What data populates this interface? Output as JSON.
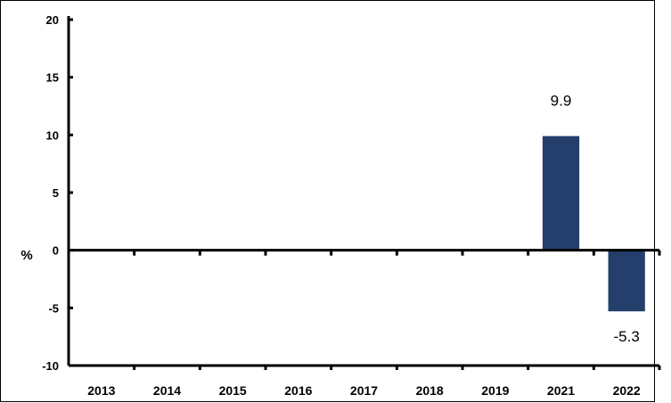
{
  "chart_data": {
    "type": "bar",
    "title": "",
    "xlabel": "",
    "ylabel": "%",
    "ylim": [
      -10,
      20
    ],
    "yticks": [
      20,
      15,
      10,
      5,
      0,
      -5,
      -10
    ],
    "grid": false,
    "categories": [
      "2013",
      "2014",
      "2015",
      "2016",
      "2017",
      "2018",
      "2019",
      "2021",
      "2022"
    ],
    "values": [
      0,
      0,
      0,
      0,
      0,
      0,
      0,
      9.9,
      -5.3
    ],
    "data_labels": [
      "",
      "",
      "",
      "",
      "",
      "",
      "",
      "9.9",
      "-5.3"
    ],
    "bar_color": "#243F6B"
  }
}
